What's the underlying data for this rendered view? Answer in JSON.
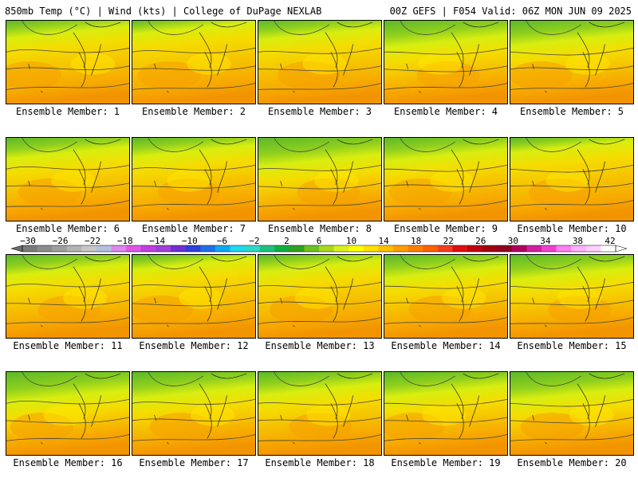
{
  "header": {
    "left": "850mb Temp (°C) | Wind (kts) | College of DuPage NEXLAB",
    "right": "00Z GEFS | F054 Valid: 06Z MON JUN 09 2025"
  },
  "panel_label_prefix": "Ensemble Member: ",
  "members": [
    {
      "number": "1"
    },
    {
      "number": "2"
    },
    {
      "number": "3"
    },
    {
      "number": "4"
    },
    {
      "number": "5"
    },
    {
      "number": "6"
    },
    {
      "number": "7"
    },
    {
      "number": "8"
    },
    {
      "number": "9"
    },
    {
      "number": "10"
    },
    {
      "number": "11"
    },
    {
      "number": "12"
    },
    {
      "number": "13"
    },
    {
      "number": "14"
    },
    {
      "number": "15"
    },
    {
      "number": "16"
    },
    {
      "number": "17"
    },
    {
      "number": "18"
    },
    {
      "number": "19"
    },
    {
      "number": "20"
    }
  ],
  "colorbar": {
    "tick_labels": [
      "−30",
      "−26",
      "−22",
      "−18",
      "−14",
      "−10",
      "−6",
      "−2",
      "2",
      "6",
      "10",
      "14",
      "18",
      "22",
      "26",
      "30",
      "34",
      "38",
      "42"
    ],
    "colors": [
      "#7a7a7a",
      "#8c8c8c",
      "#9f9f9f",
      "#b3b3b3",
      "#c7c7c7",
      "#b6bfe0",
      "#dd88ee",
      "#e055e8",
      "#c040e0",
      "#a040d8",
      "#7030d0",
      "#3040d8",
      "#2070e8",
      "#10a8f0",
      "#20d8f0",
      "#30d8c8",
      "#20c080",
      "#10b040",
      "#30a020",
      "#70c020",
      "#a8d820",
      "#d8f020",
      "#ffff00",
      "#ffe000",
      "#ffc000",
      "#ffa000",
      "#ff8000",
      "#ff6000",
      "#f04020",
      "#e01010",
      "#c00010",
      "#a00010",
      "#900020",
      "#b00060",
      "#d020a0",
      "#f040d0",
      "#ff80f0",
      "#ffb0ff",
      "#ffd0ff",
      "#ffffff"
    ]
  }
}
